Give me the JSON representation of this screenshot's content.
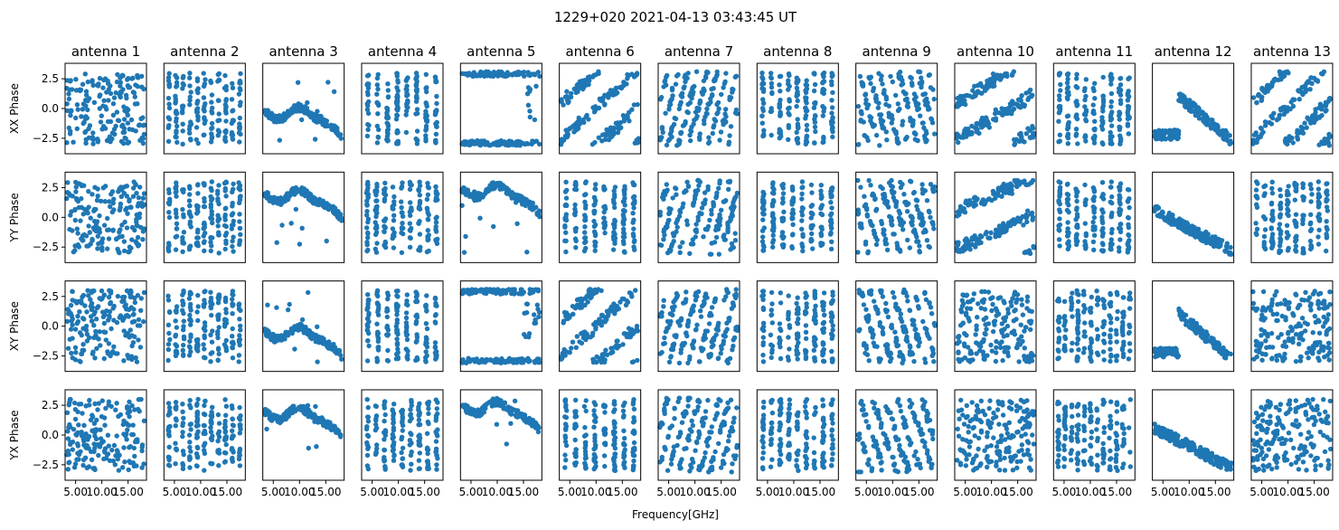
{
  "chart_data": {
    "type": "scatter",
    "title": "1229+020 2021-04-13 03:43:45 UT",
    "xlabel": "Frequency[GHz]",
    "xlim": [
      3.0,
      18.5
    ],
    "ylim": [
      -3.8,
      3.8
    ],
    "x_ticks": [
      5.0,
      10.0,
      15.0
    ],
    "x_tick_labels": [
      "5.00",
      "10.00",
      "15.00"
    ],
    "y_ticks": [
      2.5,
      0.0,
      -2.5
    ],
    "y_tick_labels": [
      "2.5",
      "0.0",
      "−2.5"
    ],
    "marker_color": "#1f77b4",
    "columns": [
      "antenna 1",
      "antenna 2",
      "antenna 3",
      "antenna 4",
      "antenna 5",
      "antenna 6",
      "antenna 7",
      "antenna 8",
      "antenna 9",
      "antenna 10",
      "antenna 11",
      "antenna 12",
      "antenna 13"
    ],
    "rows": [
      {
        "ylabel": "XX Phase",
        "patterns": [
          {
            "kind": "noise",
            "seed": 11
          },
          {
            "kind": "bands",
            "seed": 12,
            "n": 11
          },
          {
            "kind": "smooth",
            "seed": 13,
            "base": -0.4
          },
          {
            "kind": "bands",
            "seed": 14,
            "n": 8
          },
          {
            "kind": "split",
            "seed": 15
          },
          {
            "kind": "wrap",
            "seed": 16,
            "slope": 1.2
          },
          {
            "kind": "wrap",
            "seed": 17,
            "slope": 5.0
          },
          {
            "kind": "bands",
            "seed": 18,
            "n": 9
          },
          {
            "kind": "wrap",
            "seed": 19,
            "slope": -5.0
          },
          {
            "kind": "wrap",
            "seed": 20,
            "slope": 0.8
          },
          {
            "kind": "bands",
            "seed": 21,
            "n": 9
          },
          {
            "kind": "fall",
            "seed": 22
          },
          {
            "kind": "wrap",
            "seed": 23,
            "slope": 1.3
          }
        ]
      },
      {
        "ylabel": "YY Phase",
        "patterns": [
          {
            "kind": "noise",
            "seed": 31
          },
          {
            "kind": "bands",
            "seed": 32,
            "n": 11
          },
          {
            "kind": "smooth",
            "seed": 33,
            "base": 1.8
          },
          {
            "kind": "bands",
            "seed": 34,
            "n": 9
          },
          {
            "kind": "smooth",
            "seed": 35,
            "base": 2.2
          },
          {
            "kind": "bands",
            "seed": 36,
            "n": 8
          },
          {
            "kind": "wrap",
            "seed": 37,
            "slope": 4.8
          },
          {
            "kind": "bands",
            "seed": 38,
            "n": 8
          },
          {
            "kind": "wrap",
            "seed": 39,
            "slope": -4.8
          },
          {
            "kind": "wrap",
            "seed": 40,
            "slope": 0.6
          },
          {
            "kind": "bands",
            "seed": 41,
            "n": 9
          },
          {
            "kind": "fall",
            "seed": 42,
            "low": true
          },
          {
            "kind": "bands",
            "seed": 43,
            "n": 10
          }
        ]
      },
      {
        "ylabel": "XY Phase",
        "patterns": [
          {
            "kind": "noise",
            "seed": 51
          },
          {
            "kind": "bands",
            "seed": 52,
            "n": 11
          },
          {
            "kind": "smooth",
            "seed": 53,
            "base": -0.6
          },
          {
            "kind": "bands",
            "seed": 54,
            "n": 8
          },
          {
            "kind": "split",
            "seed": 55
          },
          {
            "kind": "wrap",
            "seed": 56,
            "slope": 1.2
          },
          {
            "kind": "wrap",
            "seed": 57,
            "slope": 5.0
          },
          {
            "kind": "bands",
            "seed": 58,
            "n": 9
          },
          {
            "kind": "wrap",
            "seed": 59,
            "slope": -4.5
          },
          {
            "kind": "noise",
            "seed": 60
          },
          {
            "kind": "bands",
            "seed": 61,
            "n": 12
          },
          {
            "kind": "fall",
            "seed": 62
          },
          {
            "kind": "noise",
            "seed": 63
          }
        ]
      },
      {
        "ylabel": "YX Phase",
        "patterns": [
          {
            "kind": "noise",
            "seed": 71
          },
          {
            "kind": "bands",
            "seed": 72,
            "n": 11
          },
          {
            "kind": "smooth",
            "seed": 73,
            "base": 1.8
          },
          {
            "kind": "bands",
            "seed": 74,
            "n": 9
          },
          {
            "kind": "smooth",
            "seed": 75,
            "base": 2.3
          },
          {
            "kind": "bands",
            "seed": 76,
            "n": 8
          },
          {
            "kind": "wrap",
            "seed": 77,
            "slope": 4.8
          },
          {
            "kind": "bands",
            "seed": 78,
            "n": 9
          },
          {
            "kind": "wrap",
            "seed": 79,
            "slope": -4.0
          },
          {
            "kind": "noise",
            "seed": 80
          },
          {
            "kind": "bands",
            "seed": 81,
            "n": 12
          },
          {
            "kind": "fall",
            "seed": 82,
            "low": true
          },
          {
            "kind": "noise",
            "seed": 83
          }
        ]
      }
    ]
  }
}
